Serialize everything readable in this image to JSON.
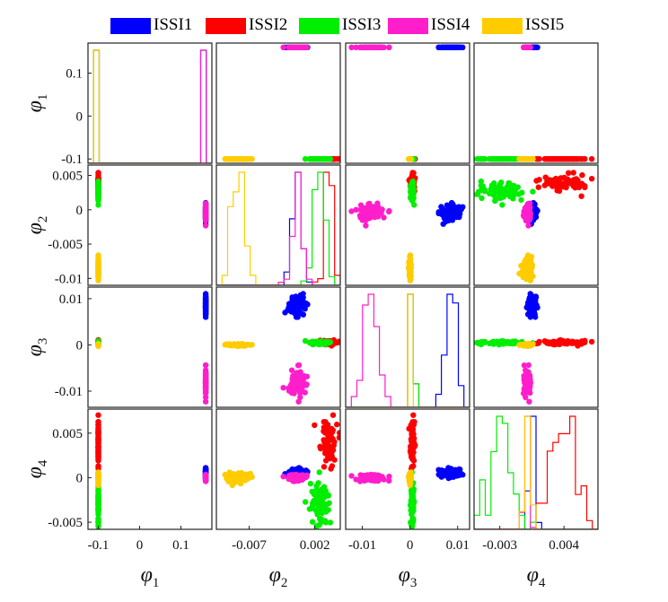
{
  "colors": {
    "ISSI1": "#0000ff",
    "ISSI2": "#ff0000",
    "ISSI3": "#00ee00",
    "ISSI4": "#ff1ecc",
    "ISSI5": "#ffcc00"
  },
  "legend": {
    "items": [
      {
        "label": "ISSI1",
        "color": "#0000ff"
      },
      {
        "label": "ISSI2",
        "color": "#ff0000"
      },
      {
        "label": "ISSI3",
        "color": "#00ee00"
      },
      {
        "label": "ISSI4",
        "color": "#ff1ecc"
      },
      {
        "label": "ISSI5",
        "color": "#ffcc00"
      }
    ]
  },
  "chart_data": {
    "type": "scatter",
    "subtype": "scatter-plot-matrix with histogram diagonal",
    "variables": [
      {
        "symbol": "φ",
        "subscript": "1",
        "ylim": [
          -0.11,
          0.17
        ],
        "yticks": [
          "0.1",
          "0",
          "-0.1"
        ],
        "ytick_values": [
          0.1,
          0,
          -0.1
        ],
        "xlim": [
          -0.125,
          0.175
        ],
        "xticks": [
          "-0.1",
          "0",
          "0.1"
        ],
        "xtick_values": [
          -0.1,
          0,
          0.1
        ]
      },
      {
        "symbol": "φ",
        "subscript": "2",
        "ylim": [
          -0.011,
          0.0065
        ],
        "yticks": [
          "0.005",
          "0",
          "-0.005",
          "-0.01"
        ],
        "ytick_values": [
          0.005,
          0,
          -0.005,
          -0.01
        ],
        "xlim": [
          -0.0115,
          0.0055
        ],
        "xticks": [
          "-0.007",
          "0.002"
        ],
        "xtick_values": [
          -0.007,
          0.002
        ]
      },
      {
        "symbol": "φ",
        "subscript": "3",
        "ylim": [
          -0.0135,
          0.0125
        ],
        "yticks": [
          "0.01",
          "0",
          "-0.01"
        ],
        "ytick_values": [
          0.01,
          0,
          -0.01
        ],
        "xlim": [
          -0.0135,
          0.0125
        ],
        "xticks": [
          "-0.01",
          "0",
          "0.01"
        ],
        "xtick_values": [
          -0.01,
          0,
          0.01
        ]
      },
      {
        "symbol": "φ",
        "subscript": "4",
        "ylim": [
          -0.0058,
          0.0077
        ],
        "yticks": [
          "0.005",
          "0",
          "-0.005"
        ],
        "ytick_values": [
          0.005,
          0,
          -0.005
        ],
        "xlim": [
          -0.0058,
          0.0077
        ],
        "xticks": [
          "-0.003",
          "0.004"
        ],
        "xtick_values": [
          -0.003,
          0.004
        ]
      }
    ],
    "series": [
      {
        "name": "ISSI1",
        "center": [
          0.16,
          -0.0005,
          0.0085,
          0.0005
        ],
        "spread": [
          0.0,
          0.0006,
          0.0012,
          0.0003
        ]
      },
      {
        "name": "ISSI2",
        "center": [
          -0.1,
          0.004,
          0.0005,
          0.004
        ],
        "spread": [
          0.0,
          0.0006,
          0.0002,
          0.0013
        ]
      },
      {
        "name": "ISSI3",
        "center": [
          -0.1,
          0.0025,
          0.0005,
          -0.003
        ],
        "spread": [
          0.0,
          0.0007,
          0.0002,
          0.0011
        ]
      },
      {
        "name": "ISSI4",
        "center": [
          0.16,
          -0.0003,
          -0.008,
          0.0
        ],
        "spread": [
          0.0,
          0.0005,
          0.0015,
          0.0002
        ]
      },
      {
        "name": "ISSI5",
        "center": [
          -0.1,
          -0.0085,
          0.0,
          0.0
        ],
        "spread": [
          0.0,
          0.001,
          0.0001,
          0.0003
        ]
      }
    ],
    "point_cloud_rules": {
      "rows_meaning": "row i is y-variable, column j is x-variable; diagonal shows step histograms",
      "legend_placement": "top"
    },
    "grid": false,
    "legend_position": "top"
  }
}
